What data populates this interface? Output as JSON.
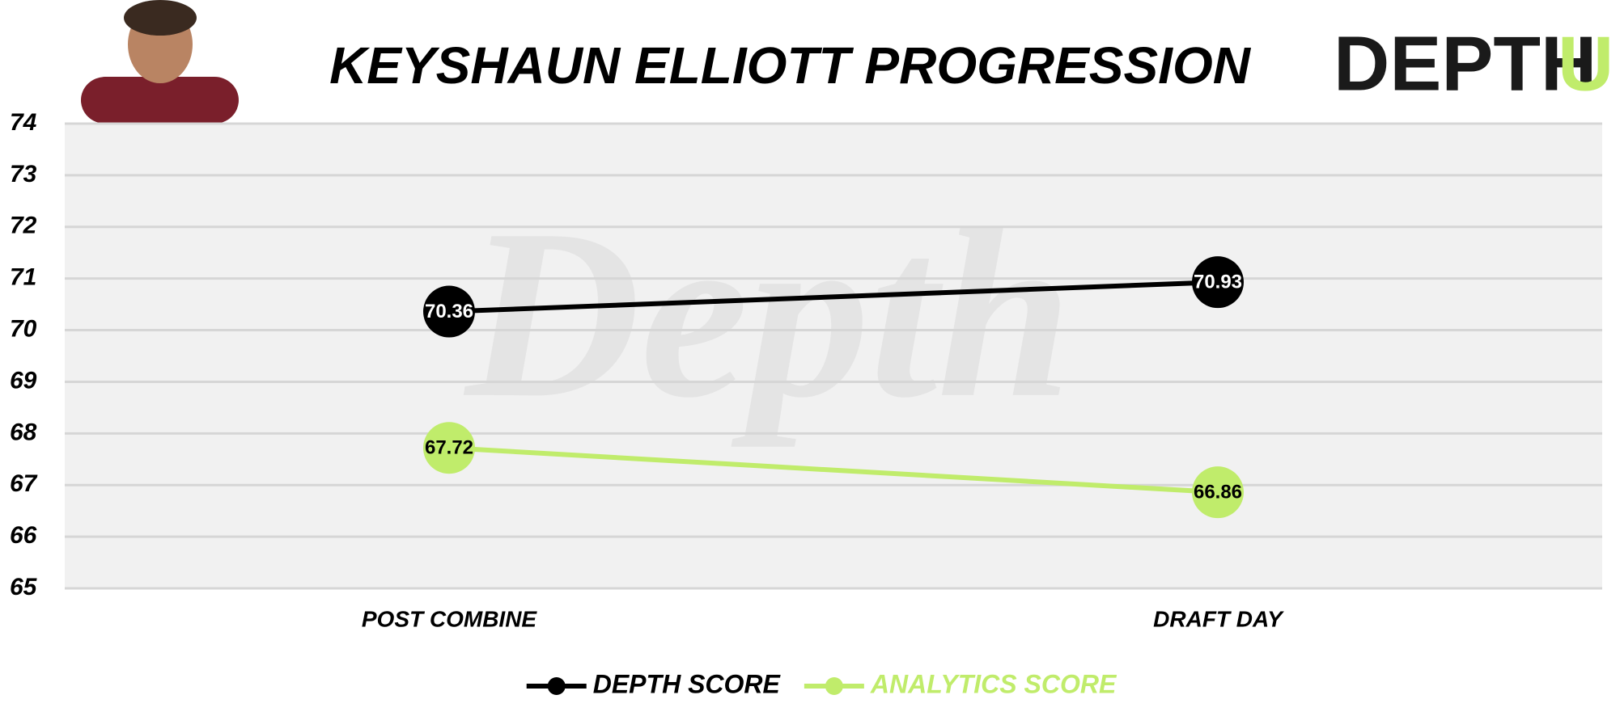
{
  "branding": {
    "logo": "DEPTH",
    "logo_accent": "U",
    "watermark": "Depth"
  },
  "chart_data": {
    "type": "line",
    "title": "KEYSHAUN ELLIOTT PROGRESSION",
    "categories": [
      "POST COMBINE",
      "DRAFT DAY"
    ],
    "series": [
      {
        "name": "DEPTH SCORE",
        "color": "#000000",
        "values": [
          70.36,
          70.93
        ]
      },
      {
        "name": "ANALYTICS SCORE",
        "color": "#c0ec6b",
        "values": [
          67.72,
          66.86
        ]
      }
    ],
    "ylim": [
      65,
      74
    ],
    "yticks": [
      65,
      66,
      67,
      68,
      69,
      70,
      71,
      72,
      73,
      74
    ],
    "grid": true,
    "legend": "bottom"
  }
}
